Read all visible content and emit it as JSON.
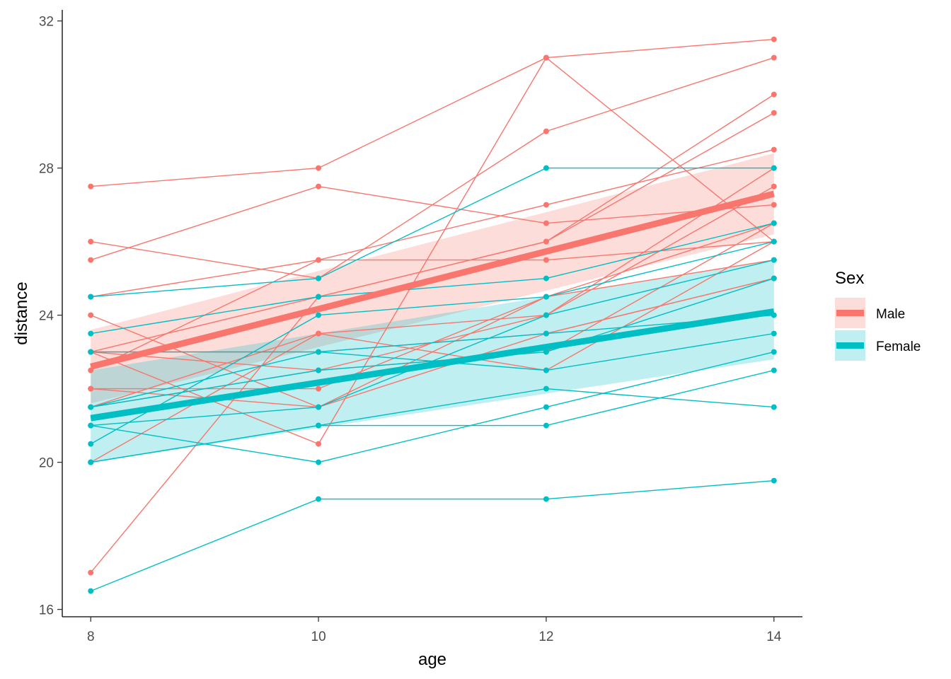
{
  "chart_data": {
    "type": "line",
    "xlabel": "age",
    "ylabel": "distance",
    "xlim": [
      7.75,
      14.25
    ],
    "ylim": [
      15.8,
      32.3
    ],
    "x_ticks": [
      8,
      10,
      12,
      14
    ],
    "y_ticks": [
      16,
      20,
      24,
      28,
      32
    ],
    "grid": false,
    "legend": {
      "title": "Sex",
      "placement": "right",
      "entries": [
        {
          "name": "Male",
          "color": "#F8766D"
        },
        {
          "name": "Female",
          "color": "#00BFC4"
        }
      ]
    },
    "x": [
      8,
      10,
      12,
      14
    ],
    "subjects": [
      {
        "group": "Male",
        "values": [
          26,
          25,
          29,
          31
        ]
      },
      {
        "group": "Male",
        "values": [
          21.5,
          22.5,
          23,
          26.5
        ]
      },
      {
        "group": "Male",
        "values": [
          23,
          22.5,
          24,
          27.5
        ]
      },
      {
        "group": "Male",
        "values": [
          25.5,
          27.5,
          26.5,
          27
        ]
      },
      {
        "group": "Male",
        "values": [
          20,
          23.5,
          22.5,
          26
        ]
      },
      {
        "group": "Male",
        "values": [
          24.5,
          25.5,
          27,
          28.5
        ]
      },
      {
        "group": "Male",
        "values": [
          22,
          22,
          24.5,
          26.5
        ]
      },
      {
        "group": "Male",
        "values": [
          24,
          21.5,
          24.5,
          25.5
        ]
      },
      {
        "group": "Male",
        "values": [
          23,
          20.5,
          31,
          26
        ]
      },
      {
        "group": "Male",
        "values": [
          27.5,
          28,
          31,
          31.5
        ]
      },
      {
        "group": "Male",
        "values": [
          23,
          23,
          23.5,
          25
        ]
      },
      {
        "group": "Male",
        "values": [
          21.5,
          23.5,
          24,
          28
        ]
      },
      {
        "group": "Male",
        "values": [
          17,
          24.5,
          26,
          29.5
        ]
      },
      {
        "group": "Male",
        "values": [
          22.5,
          25.5,
          25.5,
          26
        ]
      },
      {
        "group": "Male",
        "values": [
          23,
          24.5,
          26,
          30
        ]
      },
      {
        "group": "Male",
        "values": [
          22,
          21.5,
          23.5,
          25
        ]
      },
      {
        "group": "Female",
        "values": [
          21,
          20,
          21.5,
          23
        ]
      },
      {
        "group": "Female",
        "values": [
          21,
          21.5,
          24,
          25.5
        ]
      },
      {
        "group": "Female",
        "values": [
          20.5,
          24,
          24.5,
          26
        ]
      },
      {
        "group": "Female",
        "values": [
          23.5,
          24.5,
          25,
          26.5
        ]
      },
      {
        "group": "Female",
        "values": [
          21.5,
          23,
          22.5,
          23.5
        ]
      },
      {
        "group": "Female",
        "values": [
          20,
          21,
          21,
          22.5
        ]
      },
      {
        "group": "Female",
        "values": [
          21.5,
          22.5,
          23,
          25
        ]
      },
      {
        "group": "Female",
        "values": [
          23,
          23,
          23.5,
          24
        ]
      },
      {
        "group": "Female",
        "values": [
          20,
          21,
          22,
          21.5
        ]
      },
      {
        "group": "Female",
        "values": [
          16.5,
          19,
          19,
          19.5
        ]
      },
      {
        "group": "Female",
        "values": [
          24.5,
          25,
          28,
          28
        ]
      }
    ],
    "fits": [
      {
        "group": "Male",
        "x": [
          8,
          14
        ],
        "values": [
          22.6,
          27.3
        ],
        "ci_lower": [
          21.6,
          26.2
        ],
        "ci_upper": [
          23.6,
          28.4
        ]
      },
      {
        "group": "Female",
        "x": [
          8,
          14
        ],
        "values": [
          21.2,
          24.1
        ],
        "ci_lower": [
          20.0,
          22.8
        ],
        "ci_upper": [
          22.5,
          25.5
        ]
      }
    ]
  }
}
